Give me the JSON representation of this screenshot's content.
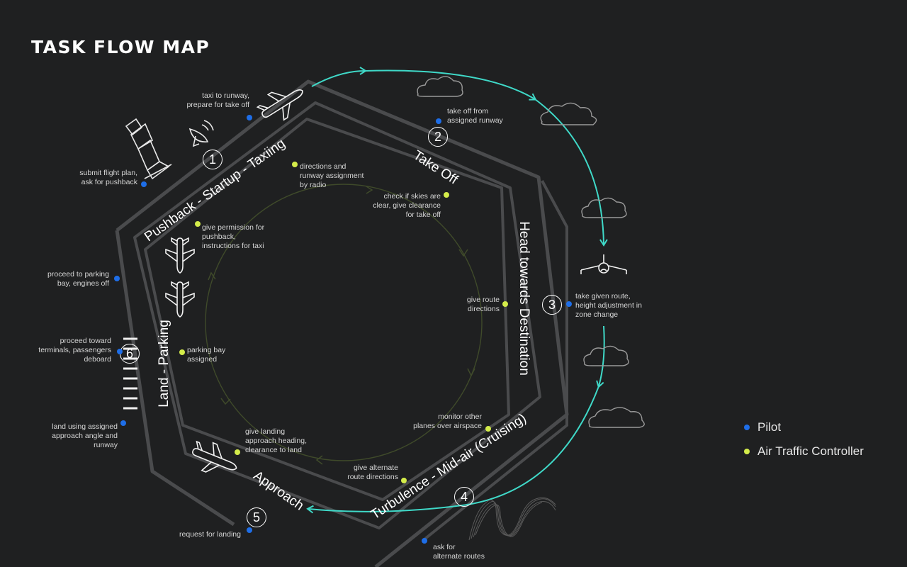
{
  "title": "TASK FLOW MAP",
  "stages": {
    "s1": "Pushback  -  Startup  -  Taxiing",
    "s2": "Take Off",
    "s3": "Head towards Destination",
    "s4": "Turbulence  -  Mid-air (Cruising)",
    "s5": "Approach",
    "s6": "Land  -  Parking"
  },
  "numbers": [
    "1",
    "2",
    "3",
    "4",
    "5",
    "6"
  ],
  "pilot_labels": {
    "p1": "submit flight plan,\nask for pushback",
    "p2": "taxi to runway,\nprepare for take off",
    "p3": "take off from\nassigned runway",
    "p4": "take given route,\nheight adjustment in\nzone change",
    "p5": "ask for\nalternate routes",
    "p6": "request for landing",
    "p7": "land using assigned\napproach angle and\nrunway",
    "p8": "proceed toward\nterminals, passengers\ndeboard",
    "p9": "proceed to parking\nbay, engines off"
  },
  "atc_labels": {
    "a1": "directions and\nrunway assignment\nby radio",
    "a2": "check if skies are\nclear, give clearance\nfor take off",
    "a3": "give route\ndirections",
    "a4": "monitor other\nplanes over airspace",
    "a5": "give alternate\nroute directions",
    "a6": "give landing\napproach heading,\nclearance to land",
    "a7": "parking bay\nassigned",
    "a8": "give permission for\npushback,\ninstructions for taxi"
  },
  "legend": {
    "pilot": "Pilot",
    "atc": "Air Traffic Controller"
  },
  "colors": {
    "background": "#1f2021",
    "pilot": "#1e6ee8",
    "atc": "#d4ec4a",
    "flow_arrow": "#3fd9c8",
    "inner_cycle": "#3f4a2a",
    "road": "#4a4b4d"
  },
  "icons": [
    "control-tower-icon",
    "satellite-dish-icon",
    "airplane-icon",
    "cloud-icon",
    "runway-stripes-icon",
    "turbulence-icon"
  ]
}
